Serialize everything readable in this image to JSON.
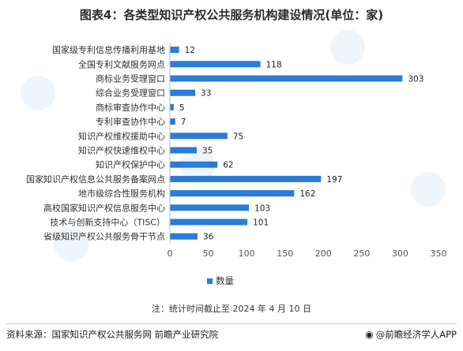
{
  "title": "图表4：各类型知识产权公共服务机构建设情况(单位：家)",
  "legend_label": "数量",
  "note": "注：统计时间截止至 2024 年 4 月 10 日",
  "source": "资料来源：国家知识产权公共服务网 前瞻产业研究院",
  "brand": "@前瞻经济学人APP",
  "brand_icon": "eye-logo-icon",
  "colors": {
    "bar": "#2b7cd8"
  },
  "chart_data": {
    "type": "bar",
    "orientation": "horizontal",
    "categories": [
      "国家级专利信息传播利用基地",
      "全国专利文献服务网点",
      "商标业务受理窗口",
      "综合业务受理窗口",
      "商标审查协作中心",
      "专利审查协作中心",
      "知识产权维权援助中心",
      "知识产权快速维权中心",
      "知识产权保护中心",
      "国家知识产权信息公共服务备案网点",
      "地市级综合性服务机构",
      "高校国家知识产权信息服务中心",
      "技术与创新支持中心（TISC）",
      "省级知识产权公共服务骨干节点"
    ],
    "series": [
      {
        "name": "数量",
        "values": [
          12,
          118,
          303,
          33,
          5,
          7,
          75,
          35,
          62,
          197,
          162,
          103,
          101,
          36
        ]
      }
    ],
    "xlim": [
      0,
      350
    ],
    "xticks": [
      0,
      50,
      100,
      150,
      200,
      250,
      300,
      350
    ],
    "grid": false,
    "legend": "bottom"
  }
}
